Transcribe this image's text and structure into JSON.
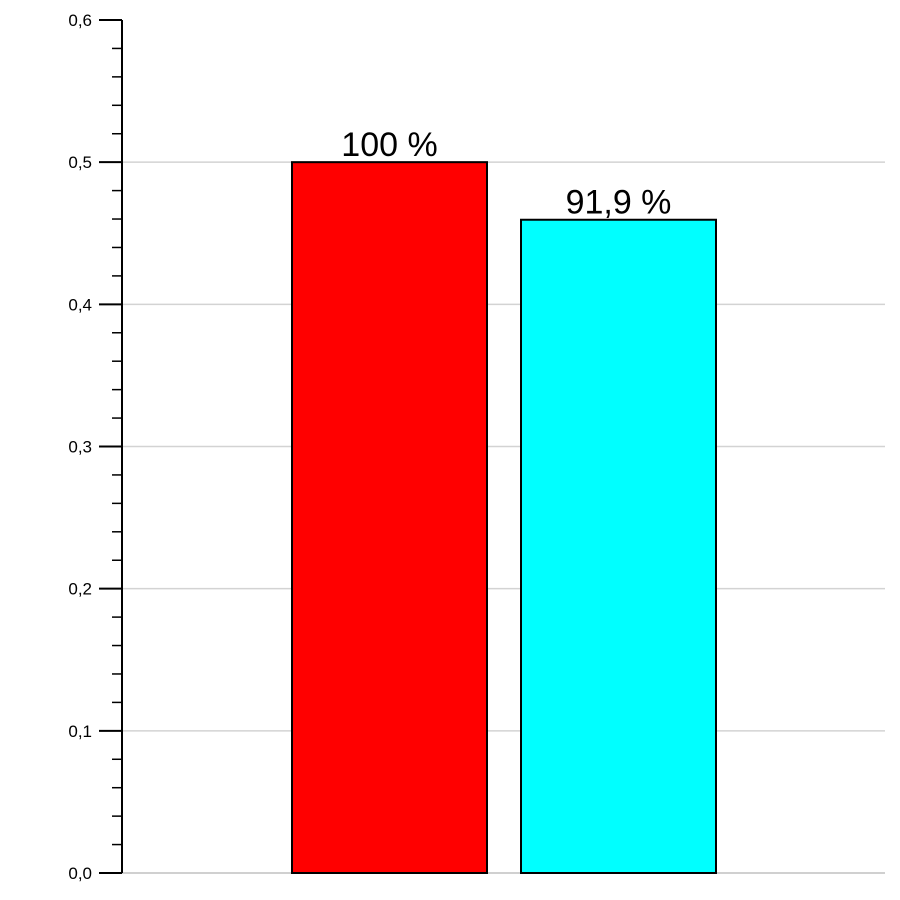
{
  "chart_data": {
    "type": "bar",
    "title": "",
    "xlabel": "",
    "ylabel": "",
    "ylim": [
      0,
      0.6
    ],
    "y_ticks": [
      "0,0",
      "0,1",
      "0,2",
      "0,3",
      "0,4",
      "0,5",
      "0,6"
    ],
    "y_tick_values": [
      0,
      0.1,
      0.2,
      0.3,
      0.4,
      0.5,
      0.6
    ],
    "minor_ticks_per_major": 5,
    "grid": true,
    "legend": "none",
    "bars": [
      {
        "value": 0.5,
        "label": "100 %",
        "color": "#ff0000"
      },
      {
        "value": 0.4595,
        "label": "91,9 %",
        "color": "#00ffff"
      }
    ]
  }
}
